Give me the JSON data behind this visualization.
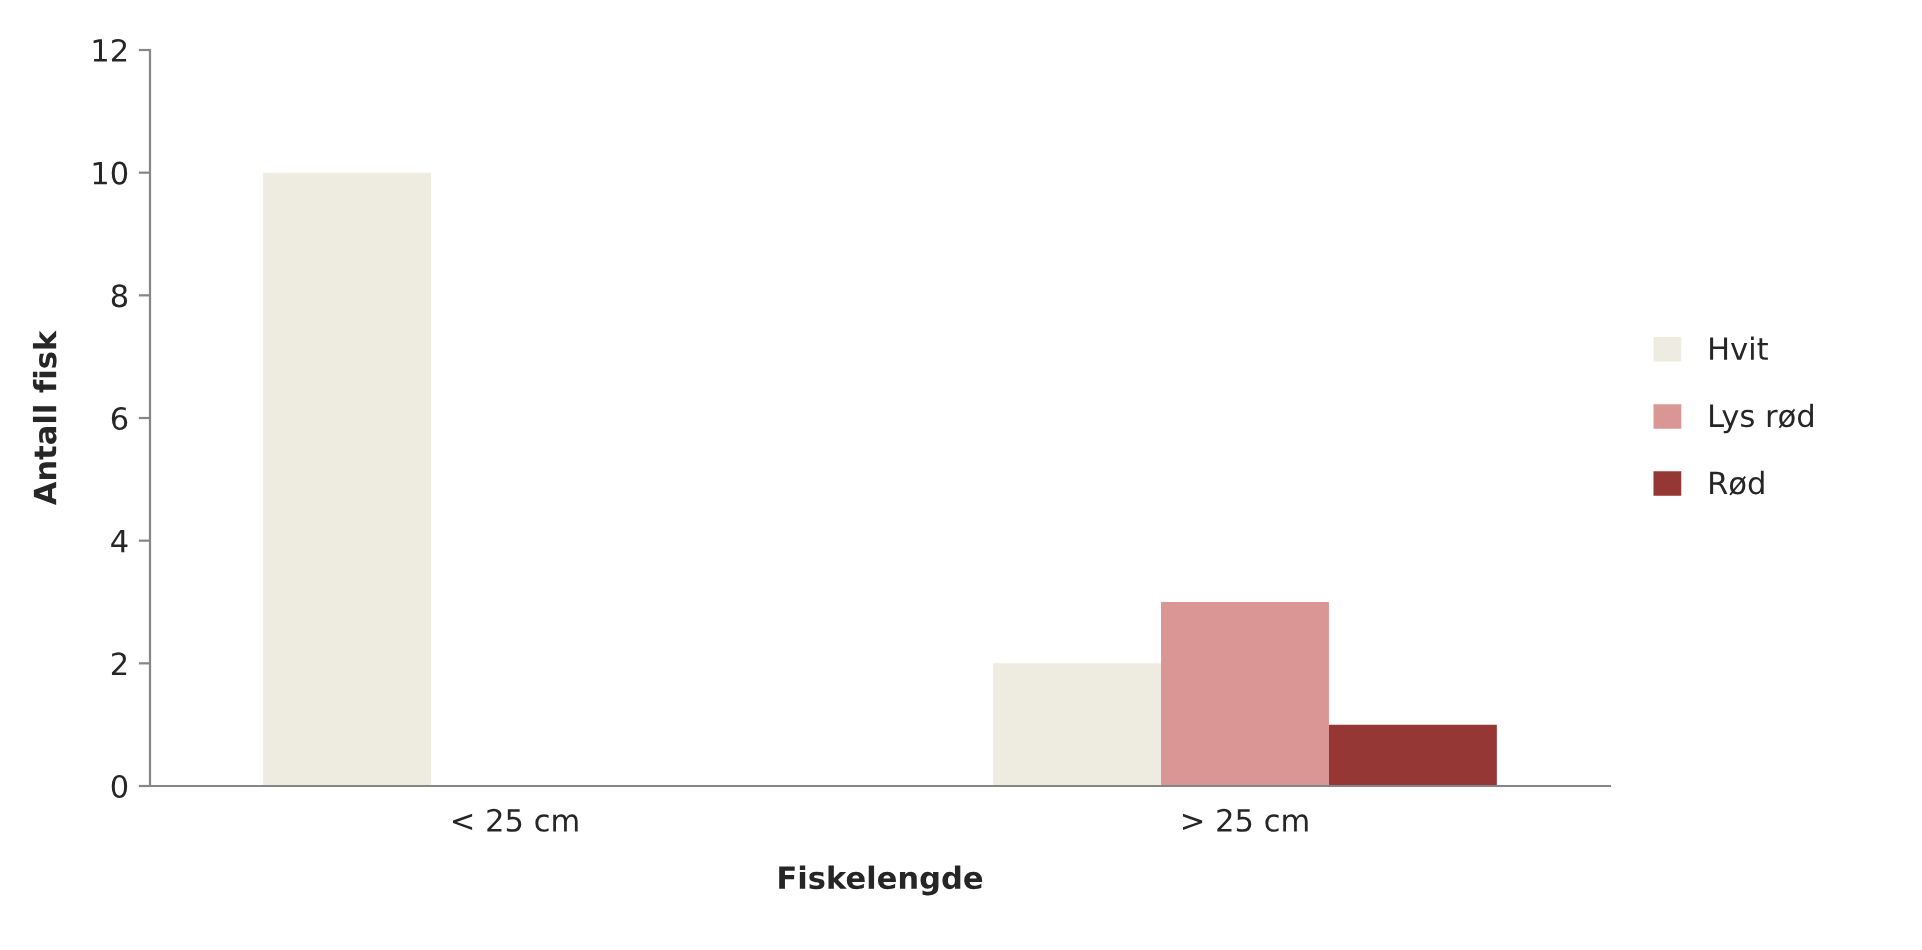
{
  "chart_data": {
    "type": "bar",
    "xlabel": "Fiskelengde",
    "ylabel": "Antall fisk",
    "categories": [
      "< 25 cm",
      "> 25 cm"
    ],
    "series": [
      {
        "name": "Hvit",
        "color": "#eeece1",
        "values": [
          10,
          2
        ]
      },
      {
        "name": "Lys rød",
        "color": "#d99694",
        "values": [
          null,
          3
        ]
      },
      {
        "name": "Rød",
        "color": "#953735",
        "values": [
          null,
          1
        ]
      }
    ],
    "ylim": [
      0,
      12
    ],
    "yticks": [
      0,
      2,
      4,
      6,
      8,
      10,
      12
    ],
    "grid": false,
    "legend": "right"
  }
}
